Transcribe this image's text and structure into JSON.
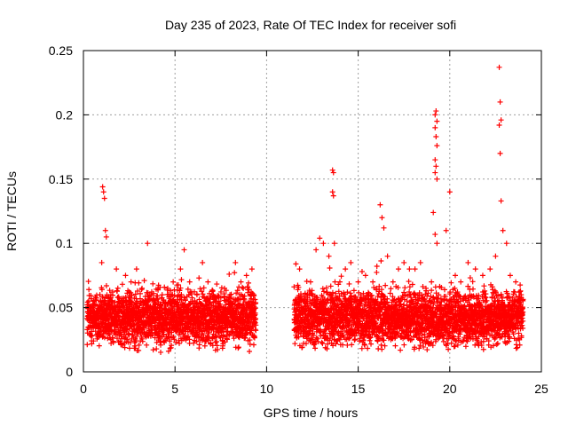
{
  "chart_data": {
    "type": "scatter",
    "title": "Day 235 of 2023, Rate Of TEC Index for receiver sofi",
    "xlabel": "GPS time / hours",
    "ylabel": "ROTI / TECUs",
    "xlim": [
      0,
      25
    ],
    "ylim": [
      0,
      0.25
    ],
    "xticks": [
      0,
      5,
      10,
      15,
      20,
      25
    ],
    "xtick_labels": [
      "0",
      "5",
      "10",
      "15",
      "20",
      "25"
    ],
    "yticks": [
      0,
      0.05,
      0.1,
      0.15,
      0.2,
      0.25
    ],
    "ytick_labels": [
      "0",
      "0.05",
      "0.1",
      "0.15",
      "0.2",
      "0.25"
    ],
    "grid": true,
    "legend": "none",
    "marker": "plus",
    "color": "#ff0000",
    "series": [
      {
        "points": [
          [
            0.3,
            0.035
          ],
          [
            0.5,
            0.05
          ],
          [
            0.7,
            0.04
          ],
          [
            0.9,
            0.06
          ],
          [
            1.0,
            0.085
          ],
          [
            1.05,
            0.144
          ],
          [
            1.1,
            0.14
          ],
          [
            1.15,
            0.135
          ],
          [
            1.2,
            0.11
          ],
          [
            1.25,
            0.105
          ],
          [
            1.5,
            0.06
          ],
          [
            1.8,
            0.08
          ],
          [
            2.0,
            0.05
          ],
          [
            2.3,
            0.075
          ],
          [
            2.6,
            0.07
          ],
          [
            2.9,
            0.08
          ],
          [
            3.2,
            0.065
          ],
          [
            3.5,
            0.1
          ],
          [
            3.7,
            0.06
          ],
          [
            4.0,
            0.045
          ],
          [
            4.3,
            0.06
          ],
          [
            4.6,
            0.065
          ],
          [
            4.9,
            0.07
          ],
          [
            5.3,
            0.08
          ],
          [
            5.5,
            0.095
          ],
          [
            5.8,
            0.07
          ],
          [
            6.2,
            0.06
          ],
          [
            6.5,
            0.085
          ],
          [
            6.8,
            0.07
          ],
          [
            7.1,
            0.06
          ],
          [
            7.4,
            0.055
          ],
          [
            7.7,
            0.065
          ],
          [
            8.0,
            0.06
          ],
          [
            8.3,
            0.085
          ],
          [
            8.6,
            0.07
          ],
          [
            8.9,
            0.075
          ],
          [
            9.2,
            0.08
          ],
          [
            9.3,
            0.06
          ],
          [
            11.6,
            0.084
          ],
          [
            11.8,
            0.08
          ],
          [
            12.1,
            0.06
          ],
          [
            12.4,
            0.07
          ],
          [
            12.7,
            0.095
          ],
          [
            12.9,
            0.104
          ],
          [
            13.1,
            0.1
          ],
          [
            13.4,
            0.09
          ],
          [
            13.6,
            0.157
          ],
          [
            13.65,
            0.155
          ],
          [
            13.6,
            0.14
          ],
          [
            13.65,
            0.137
          ],
          [
            13.7,
            0.1
          ],
          [
            14.0,
            0.07
          ],
          [
            14.3,
            0.08
          ],
          [
            14.6,
            0.085
          ],
          [
            15.0,
            0.07
          ],
          [
            15.4,
            0.075
          ],
          [
            15.8,
            0.07
          ],
          [
            16.2,
            0.13
          ],
          [
            16.3,
            0.12
          ],
          [
            16.4,
            0.112
          ],
          [
            16.6,
            0.09
          ],
          [
            16.9,
            0.07
          ],
          [
            17.2,
            0.08
          ],
          [
            17.5,
            0.085
          ],
          [
            17.8,
            0.08
          ],
          [
            18.1,
            0.08
          ],
          [
            18.4,
            0.085
          ],
          [
            18.7,
            0.065
          ],
          [
            19.0,
            0.07
          ],
          [
            19.1,
            0.124
          ],
          [
            19.2,
            0.2
          ],
          [
            19.25,
            0.203
          ],
          [
            19.3,
            0.195
          ],
          [
            19.2,
            0.19
          ],
          [
            19.25,
            0.183
          ],
          [
            19.3,
            0.176
          ],
          [
            19.2,
            0.165
          ],
          [
            19.25,
            0.16
          ],
          [
            19.2,
            0.155
          ],
          [
            19.3,
            0.15
          ],
          [
            19.2,
            0.107
          ],
          [
            19.3,
            0.1
          ],
          [
            19.8,
            0.11
          ],
          [
            20.0,
            0.14
          ],
          [
            20.3,
            0.075
          ],
          [
            20.6,
            0.07
          ],
          [
            21.0,
            0.085
          ],
          [
            21.4,
            0.08
          ],
          [
            21.8,
            0.075
          ],
          [
            22.2,
            0.08
          ],
          [
            22.5,
            0.09
          ],
          [
            22.7,
            0.237
          ],
          [
            22.75,
            0.21
          ],
          [
            22.8,
            0.196
          ],
          [
            22.7,
            0.192
          ],
          [
            22.75,
            0.17
          ],
          [
            22.8,
            0.133
          ],
          [
            22.9,
            0.11
          ],
          [
            23.1,
            0.1
          ],
          [
            23.3,
            0.075
          ],
          [
            23.6,
            0.07
          ],
          [
            23.9,
            0.06
          ]
        ]
      }
    ],
    "dense_band": [
      {
        "x_start": 0.2,
        "x_end": 9.4
      },
      {
        "x_start": 11.5,
        "x_end": 24.0
      }
    ]
  }
}
